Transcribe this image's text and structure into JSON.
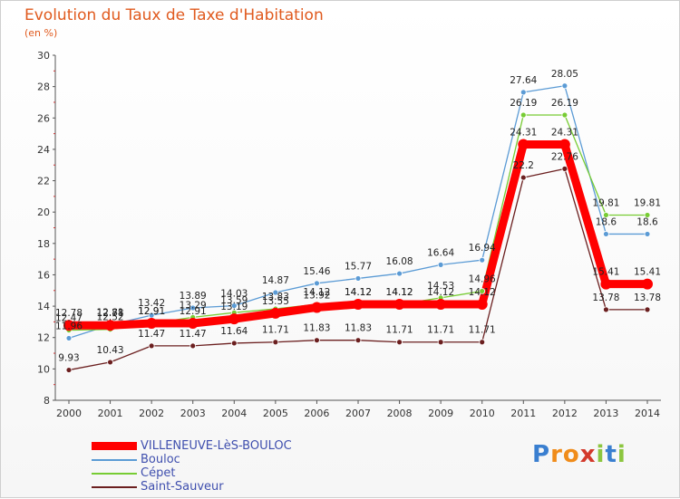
{
  "chart_data": {
    "type": "line",
    "title": "Evolution du Taux de Taxe d'Habitation",
    "ylabel": "(en %)",
    "xlabel": "",
    "ylim": [
      8,
      30
    ],
    "yticks": [
      8,
      10,
      12,
      14,
      16,
      18,
      20,
      22,
      24,
      26,
      28,
      30
    ],
    "x": [
      "2000",
      "2001",
      "2002",
      "2003",
      "2004",
      "2005",
      "2006",
      "2007",
      "2008",
      "2009",
      "2010",
      "2011",
      "2012",
      "2013",
      "2014"
    ],
    "series": [
      {
        "name": "VILLENEUVE-LèS-BOULOC",
        "color": "#ff0000",
        "values": [
          12.78,
          12.78,
          12.91,
          12.91,
          13.19,
          13.55,
          13.92,
          14.12,
          14.12,
          14.12,
          14.12,
          24.31,
          24.31,
          15.41,
          15.41
        ]
      },
      {
        "name": "Bouloc",
        "color": "#5b9bd5",
        "values": [
          11.96,
          12.81,
          13.42,
          13.89,
          14.03,
          14.87,
          15.46,
          15.77,
          16.08,
          16.64,
          16.94,
          27.64,
          28.05,
          18.6,
          18.6
        ]
      },
      {
        "name": "Cépet",
        "color": "#77cc33",
        "values": [
          12.47,
          12.52,
          12.91,
          13.29,
          13.59,
          13.83,
          14.12,
          14.12,
          14.12,
          14.53,
          14.96,
          26.19,
          26.19,
          19.81,
          19.81
        ]
      },
      {
        "name": "Saint-Sauveur",
        "color": "#6b1f1f",
        "values": [
          9.93,
          10.43,
          11.47,
          11.47,
          11.64,
          11.71,
          11.83,
          11.83,
          11.71,
          11.71,
          11.71,
          22.2,
          22.76,
          13.78,
          13.78
        ]
      }
    ],
    "legend": "bottom-left",
    "grid": false
  },
  "logo": {
    "letters": [
      "P",
      "r",
      "o",
      "x",
      "i",
      "t",
      "i"
    ],
    "colors": [
      "#3a7fd0",
      "#f08c1a",
      "#f08c1a",
      "#d33a2c",
      "#8cc63f",
      "#3a7fd0",
      "#8cc63f"
    ]
  }
}
